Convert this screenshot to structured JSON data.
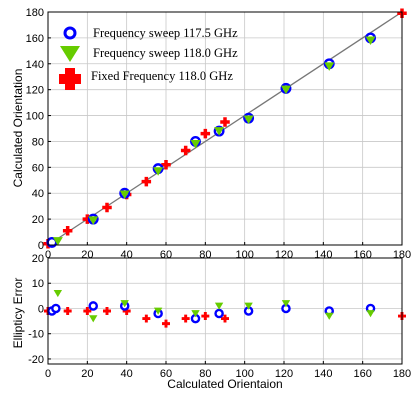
{
  "chart_data": [
    {
      "type": "scatter",
      "title": "",
      "xlabel": "",
      "ylabel": "Calculated Orientation",
      "xlim": [
        0,
        180
      ],
      "ylim": [
        0,
        180
      ],
      "xticks": [
        "0",
        "20",
        "40",
        "60",
        "80",
        "100",
        "120",
        "140",
        "160",
        "180"
      ],
      "yticks": [
        "0",
        "20",
        "40",
        "60",
        "80",
        "100",
        "120",
        "140",
        "160",
        "180"
      ],
      "grid": true,
      "legend_position": "top-left",
      "reference_line": {
        "x": [
          0,
          180
        ],
        "y": [
          0,
          180
        ],
        "color": "#777777"
      },
      "series": [
        {
          "name": "Frequency sweep 117.5 GHz",
          "marker": "circle",
          "color": "#0000ff",
          "points": [
            [
              2,
              2
            ],
            [
              23,
              20
            ],
            [
              39,
              40
            ],
            [
              56,
              59
            ],
            [
              75,
              80
            ],
            [
              87,
              88
            ],
            [
              102,
              98
            ],
            [
              121,
              121
            ],
            [
              143,
              140
            ],
            [
              164,
              160
            ]
          ]
        },
        {
          "name": "Frequency sweep 118.0 GHz",
          "marker": "triangle",
          "color": "#66cc00",
          "points": [
            [
              5,
              3
            ],
            [
              23,
              19
            ],
            [
              39,
              39
            ],
            [
              56,
              57
            ],
            [
              75,
              78
            ],
            [
              87,
              88
            ],
            [
              102,
              97
            ],
            [
              121,
              120
            ],
            [
              143,
              138
            ],
            [
              164,
              158
            ]
          ]
        },
        {
          "name": "Fixed Frequency 118.0 GHz",
          "marker": "plus",
          "color": "#ff0000",
          "points": [
            [
              0,
              1
            ],
            [
              10,
              11
            ],
            [
              20,
              20
            ],
            [
              30,
              29
            ],
            [
              40,
              39
            ],
            [
              50,
              49
            ],
            [
              60,
              62
            ],
            [
              70,
              73
            ],
            [
              80,
              86
            ],
            [
              90,
              95
            ],
            [
              180,
              179
            ]
          ]
        }
      ]
    },
    {
      "type": "scatter",
      "title": "",
      "xlabel": "Calculated Orientaion",
      "ylabel": "Ellipticy Error",
      "xlim": [
        0,
        180
      ],
      "ylim": [
        -22,
        20
      ],
      "xticks": [
        "0",
        "20",
        "40",
        "60",
        "80",
        "100",
        "120",
        "140",
        "160",
        "180"
      ],
      "yticks": [
        "-20",
        "-10",
        "0",
        "10",
        "20"
      ],
      "grid": true,
      "series": [
        {
          "name": "Frequency sweep 117.5 GHz",
          "marker": "circle",
          "color": "#0000ff",
          "points": [
            [
              2,
              -1
            ],
            [
              4,
              0
            ],
            [
              23,
              1
            ],
            [
              39,
              1
            ],
            [
              56,
              -2
            ],
            [
              75,
              -4
            ],
            [
              87,
              -2
            ],
            [
              102,
              -1
            ],
            [
              121,
              0
            ],
            [
              143,
              -1
            ],
            [
              164,
              0
            ]
          ]
        },
        {
          "name": "Frequency sweep 118.0 GHz",
          "marker": "triangle",
          "color": "#66cc00",
          "points": [
            [
              5,
              6
            ],
            [
              23,
              -4
            ],
            [
              39,
              2
            ],
            [
              56,
              -1
            ],
            [
              75,
              -2
            ],
            [
              87,
              1
            ],
            [
              102,
              1
            ],
            [
              121,
              2
            ],
            [
              143,
              -3
            ],
            [
              164,
              -2
            ]
          ]
        },
        {
          "name": "Fixed Frequency 118.0 GHz",
          "marker": "plus",
          "color": "#ff0000",
          "points": [
            [
              0,
              -1
            ],
            [
              10,
              -1
            ],
            [
              20,
              -1
            ],
            [
              30,
              -1
            ],
            [
              40,
              -1
            ],
            [
              50,
              -4
            ],
            [
              60,
              -6
            ],
            [
              70,
              -4
            ],
            [
              80,
              -3
            ],
            [
              90,
              -4
            ],
            [
              180,
              -3
            ]
          ]
        }
      ]
    }
  ]
}
